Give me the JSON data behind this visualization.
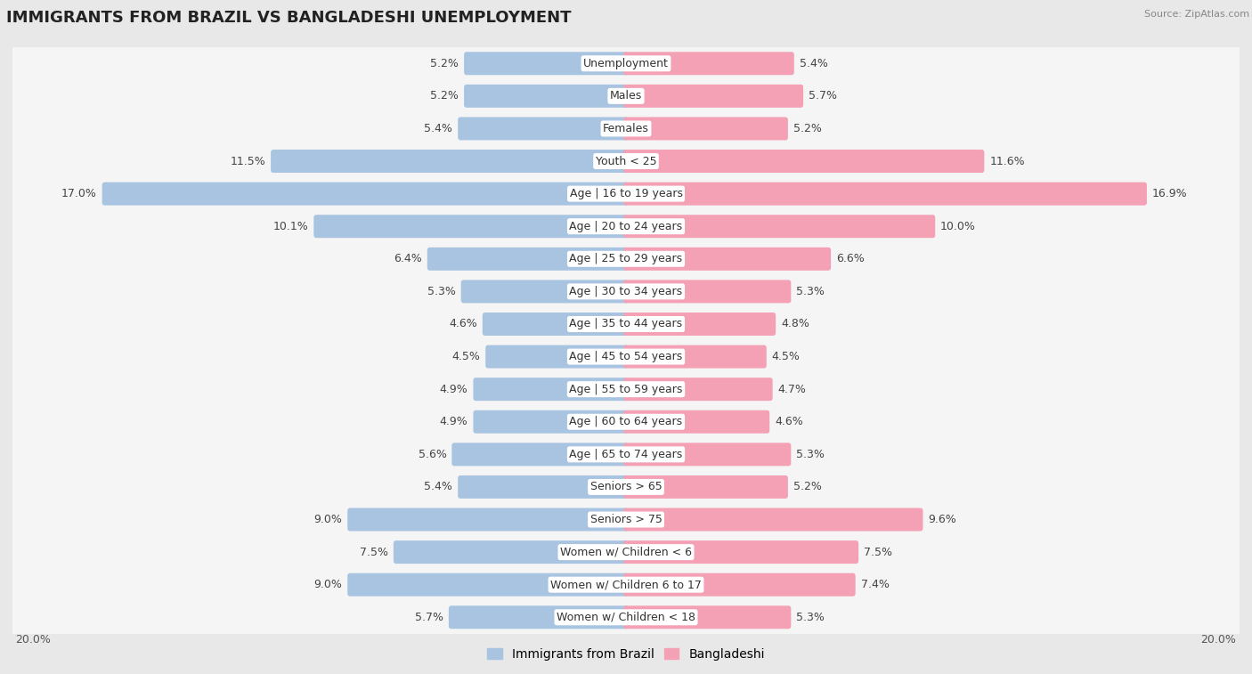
{
  "title": "IMMIGRANTS FROM BRAZIL VS BANGLADESHI UNEMPLOYMENT",
  "source": "Source: ZipAtlas.com",
  "categories": [
    "Unemployment",
    "Males",
    "Females",
    "Youth < 25",
    "Age | 16 to 19 years",
    "Age | 20 to 24 years",
    "Age | 25 to 29 years",
    "Age | 30 to 34 years",
    "Age | 35 to 44 years",
    "Age | 45 to 54 years",
    "Age | 55 to 59 years",
    "Age | 60 to 64 years",
    "Age | 65 to 74 years",
    "Seniors > 65",
    "Seniors > 75",
    "Women w/ Children < 6",
    "Women w/ Children 6 to 17",
    "Women w/ Children < 18"
  ],
  "brazil_values": [
    5.2,
    5.2,
    5.4,
    11.5,
    17.0,
    10.1,
    6.4,
    5.3,
    4.6,
    4.5,
    4.9,
    4.9,
    5.6,
    5.4,
    9.0,
    7.5,
    9.0,
    5.7
  ],
  "bangladeshi_values": [
    5.4,
    5.7,
    5.2,
    11.6,
    16.9,
    10.0,
    6.6,
    5.3,
    4.8,
    4.5,
    4.7,
    4.6,
    5.3,
    5.2,
    9.6,
    7.5,
    7.4,
    5.3
  ],
  "brazil_color": "#a8c4e0",
  "bangladeshi_color": "#f4a0b5",
  "axis_limit": 20.0,
  "legend_brazil": "Immigrants from Brazil",
  "legend_bangladeshi": "Bangladeshi",
  "background_color": "#e8e8e8",
  "row_color": "#f5f5f5",
  "title_fontsize": 13,
  "label_fontsize": 9,
  "value_fontsize": 9,
  "legend_fontsize": 10
}
